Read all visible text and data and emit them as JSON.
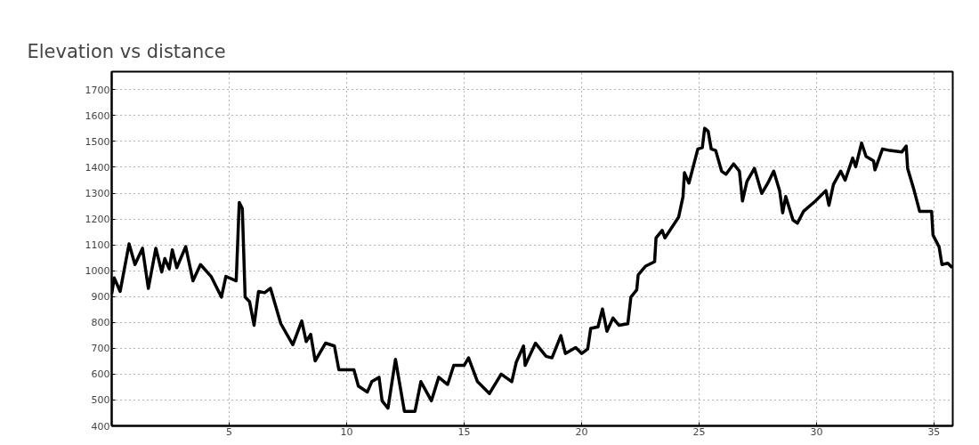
{
  "chart_data": {
    "type": "line",
    "title": "Elevation vs distance",
    "x": [
      0,
      0.11,
      0.36,
      0.74,
      0.99,
      1.31,
      1.56,
      1.88,
      2.13,
      2.26,
      2.45,
      2.58,
      2.77,
      3.15,
      3.46,
      3.78,
      4.23,
      4.67,
      4.86,
      5.3,
      5.43,
      5.56,
      5.68,
      5.87,
      6.06,
      6.25,
      6.51,
      6.76,
      7.2,
      7.71,
      8.09,
      8.28,
      8.47,
      8.66,
      9.1,
      9.48,
      9.67,
      10.31,
      10.5,
      10.88,
      11.07,
      11.38,
      11.51,
      11.76,
      12.08,
      12.46,
      12.91,
      13.16,
      13.61,
      13.92,
      14.3,
      14.56,
      15.0,
      15.19,
      15.57,
      16.08,
      16.58,
      17.03,
      17.22,
      17.53,
      17.6,
      18.04,
      18.49,
      18.74,
      19.12,
      19.31,
      19.75,
      20.01,
      20.26,
      20.39,
      20.7,
      20.89,
      21.08,
      21.34,
      21.59,
      21.97,
      22.1,
      22.35,
      22.41,
      22.73,
      23.11,
      23.17,
      23.43,
      23.55,
      24.13,
      24.32,
      24.38,
      24.57,
      24.95,
      25.14,
      25.24,
      25.39,
      25.52,
      25.71,
      25.96,
      26.15,
      26.47,
      26.72,
      26.85,
      27.04,
      27.36,
      27.67,
      27.93,
      28.18,
      28.43,
      28.56,
      28.69,
      29.0,
      29.19,
      29.45,
      29.96,
      30.4,
      30.53,
      30.72,
      31.03,
      31.22,
      31.54,
      31.67,
      31.92,
      32.11,
      32.43,
      32.49,
      32.81,
      33.12,
      33.63,
      33.82,
      33.88,
      34.14,
      34.39,
      34.9,
      34.96,
      35.22,
      35.34,
      35.59,
      35.78
    ],
    "series": [
      {
        "color": "#000000",
        "values": [
          910,
          972,
          920,
          1104,
          1024,
          1087,
          932,
          1087,
          995,
          1047,
          1007,
          1081,
          1012,
          1093,
          961,
          1024,
          978,
          898,
          978,
          961,
          1264,
          1241,
          898,
          880,
          789,
          920,
          915,
          932,
          795,
          714,
          806,
          726,
          754,
          651,
          720,
          709,
          617,
          617,
          554,
          531,
          571,
          588,
          497,
          468,
          657,
          456,
          456,
          571,
          497,
          588,
          560,
          634,
          634,
          663,
          571,
          525,
          600,
          571,
          646,
          709,
          634,
          720,
          669,
          663,
          749,
          680,
          703,
          680,
          697,
          777,
          783,
          852,
          766,
          817,
          789,
          795,
          898,
          926,
          984,
          1018,
          1035,
          1127,
          1156,
          1127,
          1207,
          1287,
          1379,
          1339,
          1471,
          1476,
          1551,
          1539,
          1471,
          1465,
          1385,
          1373,
          1413,
          1385,
          1270,
          1345,
          1396,
          1299,
          1339,
          1385,
          1310,
          1224,
          1287,
          1196,
          1184,
          1230,
          1270,
          1310,
          1253,
          1333,
          1385,
          1350,
          1436,
          1402,
          1494,
          1442,
          1425,
          1390,
          1471,
          1465,
          1459,
          1482,
          1396,
          1316,
          1230,
          1230,
          1138,
          1092,
          1024,
          1029,
          1012
        ]
      }
    ],
    "xlim": [
      0,
      35.8
    ],
    "ylim": [
      400,
      1770
    ],
    "xticks": [
      5,
      10,
      15,
      20,
      25,
      30,
      35
    ],
    "yticks": [
      400,
      500,
      600,
      700,
      800,
      900,
      1000,
      1100,
      1200,
      1300,
      1400,
      1500,
      1600,
      1700
    ],
    "grid": true,
    "line_style": "solid"
  }
}
